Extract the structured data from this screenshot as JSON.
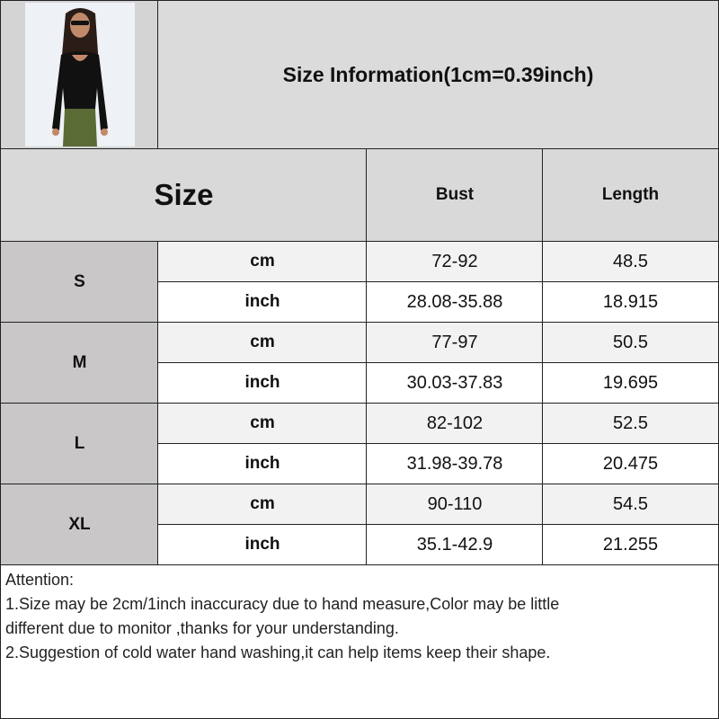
{
  "header": {
    "title": "Size Information(1cm=0.39inch)"
  },
  "product_image": {
    "alt": "model wearing black long-sleeve square-neck top and green pants"
  },
  "table": {
    "size_label": "Size",
    "columns": [
      "Bust",
      "Length"
    ],
    "rows": [
      {
        "size": "S",
        "cm": {
          "unit": "cm",
          "bust": "72-92",
          "length": "48.5"
        },
        "inch": {
          "unit": "inch",
          "bust": "28.08-35.88",
          "length": "18.915"
        }
      },
      {
        "size": "M",
        "cm": {
          "unit": "cm",
          "bust": "77-97",
          "length": "50.5"
        },
        "inch": {
          "unit": "inch",
          "bust": "30.03-37.83",
          "length": "19.695"
        }
      },
      {
        "size": "L",
        "cm": {
          "unit": "cm",
          "bust": "82-102",
          "length": "52.5"
        },
        "inch": {
          "unit": "inch",
          "bust": "31.98-39.78",
          "length": "20.475"
        }
      },
      {
        "size": "XL",
        "cm": {
          "unit": "cm",
          "bust": "90-110",
          "length": "54.5"
        },
        "inch": {
          "unit": "inch",
          "bust": "35.1-42.9",
          "length": "21.255"
        }
      }
    ]
  },
  "notes": {
    "heading": "Attention:",
    "line1a": "1.Size may be 2cm/1inch inaccuracy due to hand measure,Color may be little",
    "line1b": "different due to monitor ,thanks for your understanding.",
    "line2": "2.Suggestion of cold water hand washing,it can help items keep their shape."
  }
}
